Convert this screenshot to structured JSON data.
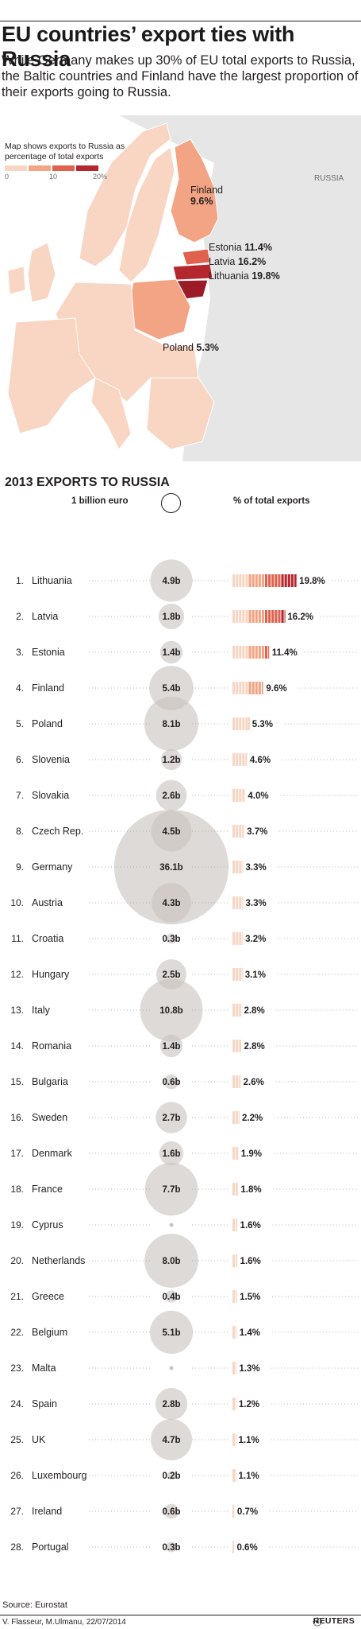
{
  "title": "EU countries’ export ties with Russia",
  "subtitle": "While Germany makes up 30% of EU total exports to Russia, the Baltic countries and Finland have the largest proportion of their exports going to Russia.",
  "map": {
    "legend_note": "Map shows exports to Russia as percentage of total exports",
    "legend_ticks": [
      "0",
      "10",
      "20%"
    ],
    "russia_label": "RUSSIA",
    "labels": {
      "finland_name": "Finland",
      "finland_value": "9.6%",
      "estonia_name": "Estonia",
      "estonia_value": "11.4%",
      "latvia_name": "Latvia",
      "latvia_value": "16.2%",
      "lithuania_name": "Lithuania",
      "lithuania_value": "19.8%",
      "poland_name": "Poland",
      "poland_value": "5.3%"
    },
    "colors": {
      "scale": [
        "#f9d5c3",
        "#f2a485",
        "#e0614d",
        "#b5272f"
      ],
      "russia": "#e6e6e6",
      "border": "#ffffff"
    }
  },
  "chart_data": {
    "type": "table",
    "title": "2013 EXPORTS TO RUSSIA",
    "columns": [
      "1 billion euro",
      "% of total exports"
    ],
    "ranks": [
      "1.",
      "2.",
      "3.",
      "4.",
      "5.",
      "6.",
      "7.",
      "8.",
      "9.",
      "10.",
      "11.",
      "12.",
      "13.",
      "14.",
      "15.",
      "16.",
      "17.",
      "18.",
      "19.",
      "20.",
      "21.",
      "22.",
      "23.",
      "24.",
      "25.",
      "26.",
      "27.",
      "28."
    ],
    "categories": [
      "Lithuania",
      "Latvia",
      "Estonia",
      "Finland",
      "Poland",
      "Slovenia",
      "Slovakia",
      "Czech Rep.",
      "Germany",
      "Austria",
      "Croatia",
      "Hungary",
      "Italy",
      "Romania",
      "Bulgaria",
      "Sweden",
      "Denmark",
      "France",
      "Cyprus",
      "Netherlands",
      "Greece",
      "Belgium",
      "Malta",
      "Spain",
      "UK",
      "Luxembourg",
      "Ireland",
      "Portugal"
    ],
    "series": [
      {
        "name": "1 billion euro",
        "values": [
          4.9,
          1.8,
          1.4,
          5.4,
          8.1,
          1.2,
          2.6,
          4.5,
          36.1,
          4.3,
          0.3,
          2.5,
          10.8,
          1.4,
          0.6,
          2.7,
          1.6,
          7.7,
          null,
          8.0,
          0.4,
          5.1,
          null,
          2.8,
          4.7,
          0.2,
          0.6,
          0.3
        ]
      },
      {
        "name": "% of total exports",
        "values": [
          19.8,
          16.2,
          11.4,
          9.6,
          5.3,
          4.6,
          4.0,
          3.7,
          3.3,
          3.3,
          3.2,
          3.1,
          2.8,
          2.8,
          2.6,
          2.2,
          1.9,
          1.8,
          1.6,
          1.6,
          1.5,
          1.4,
          1.3,
          1.2,
          1.1,
          1.1,
          0.7,
          0.6
        ]
      }
    ],
    "value_labels": [
      "4.9b",
      "1.8b",
      "1.4b",
      "5.4b",
      "8.1b",
      "1.2b",
      "2.6b",
      "4.5b",
      "36.1b",
      "4.3b",
      "0.3b",
      "2.5b",
      "10.8b",
      "1.4b",
      "0.6b",
      "2.7b",
      "1.6b",
      "7.7b",
      "",
      "8.0b",
      "0.4b",
      "5.1b",
      "",
      "2.8b",
      "4.7b",
      "0.2b",
      "0.6b",
      "0.3b"
    ],
    "pct_labels": [
      "19.8%",
      "16.2%",
      "11.4%",
      "9.6%",
      "5.3%",
      "4.6%",
      "4.0%",
      "3.7%",
      "3.3%",
      "3.3%",
      "3.2%",
      "3.1%",
      "2.8%",
      "2.8%",
      "2.6%",
      "2.2%",
      "1.9%",
      "1.8%",
      "1.6%",
      "1.6%",
      "1.5%",
      "1.4%",
      "1.3%",
      "1.2%",
      "1.1%",
      "1.1%",
      "0.7%",
      "0.6%"
    ],
    "circle_color": "#c9c4bf",
    "bar_colors": [
      "#b5272f",
      "#e0614d",
      "#f2a485",
      "#f9d5c3"
    ],
    "source": "Source: Eurostat"
  },
  "credit": "V. Flasseur, M.Ulmanu, 22/07/2014",
  "brand": "REUTERS"
}
